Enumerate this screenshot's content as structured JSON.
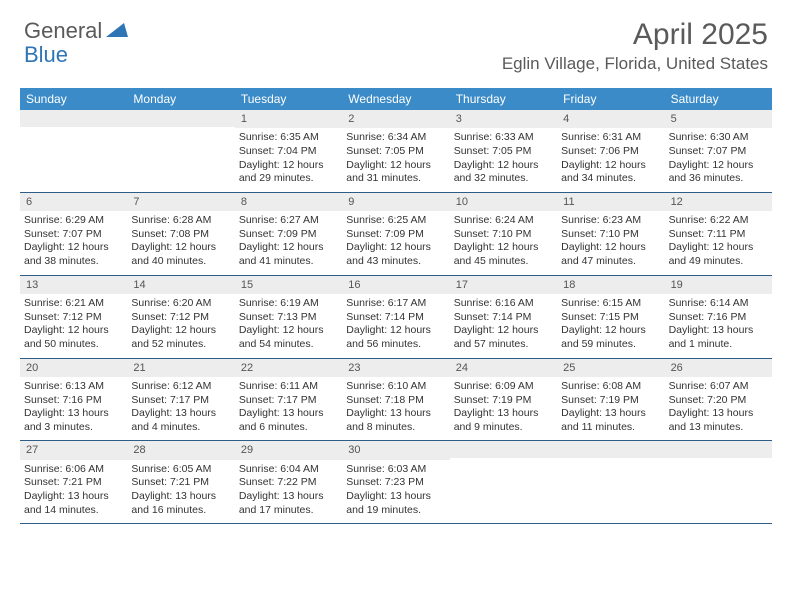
{
  "logo": {
    "general": "General",
    "blue": "Blue"
  },
  "title": "April 2025",
  "location": "Eglin Village, Florida, United States",
  "colors": {
    "header_bg": "#3b8bc8",
    "header_text": "#ffffff",
    "band_bg": "#ededed",
    "divider": "#2e5d8a",
    "title_color": "#5a5a5a",
    "logo_blue": "#2e75b6"
  },
  "typography": {
    "title_fontsize": 30,
    "location_fontsize": 17,
    "weekday_fontsize": 12,
    "cell_fontsize": 10.5
  },
  "weekdays": [
    "Sunday",
    "Monday",
    "Tuesday",
    "Wednesday",
    "Thursday",
    "Friday",
    "Saturday"
  ],
  "weeks": [
    [
      null,
      null,
      {
        "n": "1",
        "sr": "6:35 AM",
        "ss": "7:04 PM",
        "dl": "12 hours and 29 minutes."
      },
      {
        "n": "2",
        "sr": "6:34 AM",
        "ss": "7:05 PM",
        "dl": "12 hours and 31 minutes."
      },
      {
        "n": "3",
        "sr": "6:33 AM",
        "ss": "7:05 PM",
        "dl": "12 hours and 32 minutes."
      },
      {
        "n": "4",
        "sr": "6:31 AM",
        "ss": "7:06 PM",
        "dl": "12 hours and 34 minutes."
      },
      {
        "n": "5",
        "sr": "6:30 AM",
        "ss": "7:07 PM",
        "dl": "12 hours and 36 minutes."
      }
    ],
    [
      {
        "n": "6",
        "sr": "6:29 AM",
        "ss": "7:07 PM",
        "dl": "12 hours and 38 minutes."
      },
      {
        "n": "7",
        "sr": "6:28 AM",
        "ss": "7:08 PM",
        "dl": "12 hours and 40 minutes."
      },
      {
        "n": "8",
        "sr": "6:27 AM",
        "ss": "7:09 PM",
        "dl": "12 hours and 41 minutes."
      },
      {
        "n": "9",
        "sr": "6:25 AM",
        "ss": "7:09 PM",
        "dl": "12 hours and 43 minutes."
      },
      {
        "n": "10",
        "sr": "6:24 AM",
        "ss": "7:10 PM",
        "dl": "12 hours and 45 minutes."
      },
      {
        "n": "11",
        "sr": "6:23 AM",
        "ss": "7:10 PM",
        "dl": "12 hours and 47 minutes."
      },
      {
        "n": "12",
        "sr": "6:22 AM",
        "ss": "7:11 PM",
        "dl": "12 hours and 49 minutes."
      }
    ],
    [
      {
        "n": "13",
        "sr": "6:21 AM",
        "ss": "7:12 PM",
        "dl": "12 hours and 50 minutes."
      },
      {
        "n": "14",
        "sr": "6:20 AM",
        "ss": "7:12 PM",
        "dl": "12 hours and 52 minutes."
      },
      {
        "n": "15",
        "sr": "6:19 AM",
        "ss": "7:13 PM",
        "dl": "12 hours and 54 minutes."
      },
      {
        "n": "16",
        "sr": "6:17 AM",
        "ss": "7:14 PM",
        "dl": "12 hours and 56 minutes."
      },
      {
        "n": "17",
        "sr": "6:16 AM",
        "ss": "7:14 PM",
        "dl": "12 hours and 57 minutes."
      },
      {
        "n": "18",
        "sr": "6:15 AM",
        "ss": "7:15 PM",
        "dl": "12 hours and 59 minutes."
      },
      {
        "n": "19",
        "sr": "6:14 AM",
        "ss": "7:16 PM",
        "dl": "13 hours and 1 minute."
      }
    ],
    [
      {
        "n": "20",
        "sr": "6:13 AM",
        "ss": "7:16 PM",
        "dl": "13 hours and 3 minutes."
      },
      {
        "n": "21",
        "sr": "6:12 AM",
        "ss": "7:17 PM",
        "dl": "13 hours and 4 minutes."
      },
      {
        "n": "22",
        "sr": "6:11 AM",
        "ss": "7:17 PM",
        "dl": "13 hours and 6 minutes."
      },
      {
        "n": "23",
        "sr": "6:10 AM",
        "ss": "7:18 PM",
        "dl": "13 hours and 8 minutes."
      },
      {
        "n": "24",
        "sr": "6:09 AM",
        "ss": "7:19 PM",
        "dl": "13 hours and 9 minutes."
      },
      {
        "n": "25",
        "sr": "6:08 AM",
        "ss": "7:19 PM",
        "dl": "13 hours and 11 minutes."
      },
      {
        "n": "26",
        "sr": "6:07 AM",
        "ss": "7:20 PM",
        "dl": "13 hours and 13 minutes."
      }
    ],
    [
      {
        "n": "27",
        "sr": "6:06 AM",
        "ss": "7:21 PM",
        "dl": "13 hours and 14 minutes."
      },
      {
        "n": "28",
        "sr": "6:05 AM",
        "ss": "7:21 PM",
        "dl": "13 hours and 16 minutes."
      },
      {
        "n": "29",
        "sr": "6:04 AM",
        "ss": "7:22 PM",
        "dl": "13 hours and 17 minutes."
      },
      {
        "n": "30",
        "sr": "6:03 AM",
        "ss": "7:23 PM",
        "dl": "13 hours and 19 minutes."
      },
      null,
      null,
      null
    ]
  ],
  "labels": {
    "sunrise": "Sunrise:",
    "sunset": "Sunset:",
    "daylight": "Daylight:"
  }
}
